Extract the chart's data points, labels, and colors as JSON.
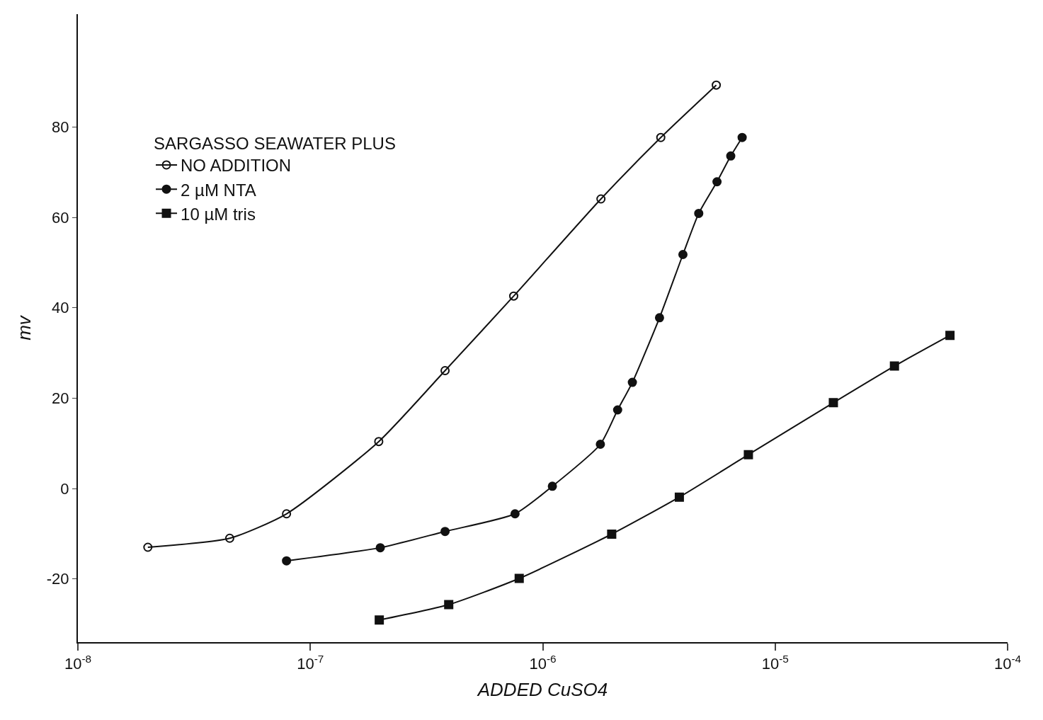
{
  "chart_data": {
    "type": "line",
    "xlabel": "ADDED CuSO4",
    "ylabel": "mv",
    "legend_title": "SARGASSO SEAWATER PLUS",
    "log": "x",
    "legend": "top left",
    "line_style": "solid",
    "xlim": [
      1e-08,
      0.0001
    ],
    "xticks": [
      {
        "value": 1e-08,
        "label": "10$^{-8}$"
      },
      {
        "value": 1e-07,
        "label": "10$^{-7}$"
      },
      {
        "value": 1e-06,
        "label": "10$^{-6}$"
      },
      {
        "value": 1e-05,
        "label": "10$^{-5}$"
      },
      {
        "value": 0.0001,
        "label": "10$^{-4}$"
      }
    ],
    "ylim": [
      -34,
      105
    ],
    "yticks": [
      -20,
      0,
      20,
      40,
      60,
      80
    ],
    "series": [
      {
        "name": "NO ADDITION",
        "color": "#111111",
        "marker": "circle-open",
        "x": [
          2e-08,
          4.5e-08,
          7.9e-08,
          1.97e-07,
          3.8e-07,
          7.5e-07,
          1.78e-06,
          3.22e-06,
          5.58e-06
        ],
        "values": [
          -13,
          -11,
          -5.6,
          10.4,
          26.1,
          42.6,
          64.1,
          77.7,
          89.3
        ]
      },
      {
        "name": "2 µM NTA",
        "color": "#111111",
        "marker": "circle",
        "x": [
          7.9e-08,
          2e-07,
          3.8e-07,
          7.6e-07,
          1.1e-06,
          1.77e-06,
          2.1e-06,
          2.43e-06,
          3.18e-06,
          4.01e-06,
          4.69e-06,
          5.62e-06,
          6.44e-06,
          7.21e-06
        ],
        "values": [
          -16,
          -13.1,
          -9.5,
          -5.6,
          0.5,
          9.8,
          17.4,
          23.5,
          37.8,
          51.8,
          60.9,
          67.9,
          73.6,
          77.7
        ]
      },
      {
        "name": "10 µM tris",
        "color": "#111111",
        "marker": "square",
        "x": [
          1.98e-07,
          3.94e-07,
          7.92e-07,
          1.98e-06,
          3.87e-06,
          7.67e-06,
          1.78e-05,
          3.26e-05,
          5.65e-05
        ],
        "values": [
          -29.1,
          -25.7,
          -19.9,
          -10.1,
          -1.9,
          7.5,
          19.0,
          27.1,
          33.9
        ]
      }
    ]
  }
}
